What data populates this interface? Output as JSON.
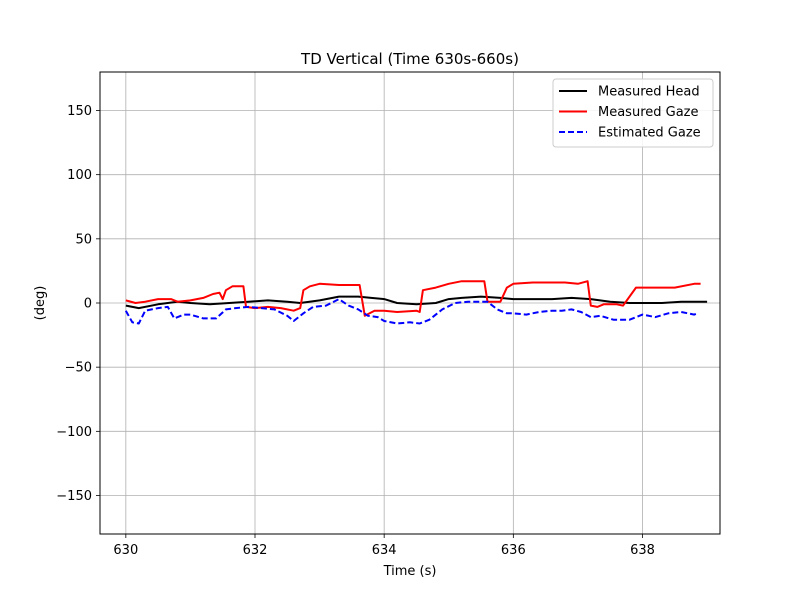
{
  "chart_data": {
    "type": "line",
    "title": "TD Vertical (Time 630s-660s)",
    "xlabel": "Time (s)",
    "ylabel": "(deg)",
    "xlim": [
      629.6,
      639.2
    ],
    "ylim": [
      -180,
      180
    ],
    "xticks": [
      630,
      632,
      634,
      636,
      638
    ],
    "xtick_labels": [
      "630",
      "632",
      "634",
      "636",
      "638"
    ],
    "yticks": [
      -150,
      -100,
      -50,
      0,
      50,
      100,
      150
    ],
    "ytick_labels": [
      "−150",
      "−100",
      "−50",
      "0",
      "50",
      "100",
      "150"
    ],
    "grid": true,
    "legend_position": "top-right",
    "series": [
      {
        "name": "Measured Head",
        "color": "#000000",
        "dash": "solid",
        "x": [
          630.0,
          630.2,
          630.5,
          630.8,
          631.0,
          631.3,
          631.6,
          631.9,
          632.2,
          632.5,
          632.7,
          633.0,
          633.3,
          633.6,
          633.8,
          634.0,
          634.2,
          634.5,
          634.8,
          635.0,
          635.2,
          635.5,
          635.8,
          636.0,
          636.3,
          636.6,
          636.9,
          637.2,
          637.5,
          637.8,
          638.0,
          638.3,
          638.6,
          639.0
        ],
        "y": [
          -2,
          -4,
          -1,
          1,
          0,
          -1,
          0,
          1,
          2,
          1,
          0,
          2,
          5,
          5,
          4,
          3,
          0,
          -1,
          0,
          3,
          4,
          5,
          4,
          3,
          3,
          3,
          4,
          3,
          1,
          0,
          0,
          0,
          1,
          1
        ]
      },
      {
        "name": "Measured Gaze",
        "color": "#ff0000",
        "dash": "solid",
        "x": [
          630.0,
          630.15,
          630.3,
          630.5,
          630.7,
          630.8,
          631.0,
          631.2,
          631.35,
          631.45,
          631.5,
          631.55,
          631.65,
          631.82,
          631.86,
          632.0,
          632.2,
          632.4,
          632.6,
          632.7,
          632.75,
          632.85,
          633.0,
          633.3,
          633.5,
          633.62,
          633.7,
          633.85,
          634.0,
          634.2,
          634.5,
          634.55,
          634.6,
          634.8,
          635.0,
          635.2,
          635.4,
          635.55,
          635.6,
          635.8,
          635.9,
          636.0,
          636.3,
          636.6,
          636.8,
          637.0,
          637.15,
          637.2,
          637.3,
          637.4,
          637.6,
          637.7,
          637.9,
          637.95,
          638.2,
          638.5,
          638.8,
          638.9
        ],
        "y": [
          2,
          0,
          1,
          3,
          3,
          1,
          2,
          4,
          7,
          8,
          3,
          10,
          13,
          13,
          -3,
          -4,
          -3,
          -4,
          -6,
          -4,
          10,
          13,
          15,
          14,
          14,
          14,
          -10,
          -6,
          -6,
          -7,
          -6,
          -7,
          10,
          12,
          15,
          17,
          17,
          17,
          1,
          1,
          12,
          15,
          16,
          16,
          16,
          15,
          17,
          -2,
          -3,
          -1,
          -1,
          -2,
          12,
          12,
          12,
          12,
          15,
          15
        ]
      },
      {
        "name": "Estimated Gaze",
        "color": "#0000ff",
        "dash": "dashed",
        "x": [
          630.0,
          630.1,
          630.2,
          630.3,
          630.5,
          630.65,
          630.75,
          630.9,
          631.0,
          631.2,
          631.4,
          631.55,
          631.7,
          631.9,
          632.1,
          632.3,
          632.5,
          632.6,
          632.75,
          632.9,
          633.1,
          633.3,
          633.45,
          633.6,
          633.75,
          633.9,
          634.0,
          634.2,
          634.4,
          634.55,
          634.7,
          634.9,
          635.1,
          635.3,
          635.6,
          635.75,
          635.9,
          636.0,
          636.2,
          636.4,
          636.6,
          636.75,
          636.9,
          637.05,
          637.2,
          637.35,
          637.55,
          637.7,
          637.8,
          638.0,
          638.2,
          638.4,
          638.6,
          638.8,
          638.85
        ],
        "y": [
          -6,
          -15,
          -16,
          -6,
          -4,
          -3,
          -12,
          -9,
          -9,
          -12,
          -12,
          -5,
          -4,
          -3,
          -4,
          -5,
          -10,
          -14,
          -8,
          -3,
          -2,
          3,
          -2,
          -5,
          -10,
          -11,
          -14,
          -16,
          -15,
          -16,
          -13,
          -5,
          0,
          1,
          1,
          -5,
          -8,
          -8,
          -9,
          -7,
          -6,
          -6,
          -5,
          -7,
          -11,
          -10,
          -13,
          -13,
          -13,
          -9,
          -11,
          -8,
          -7,
          -9,
          -8
        ]
      }
    ]
  }
}
